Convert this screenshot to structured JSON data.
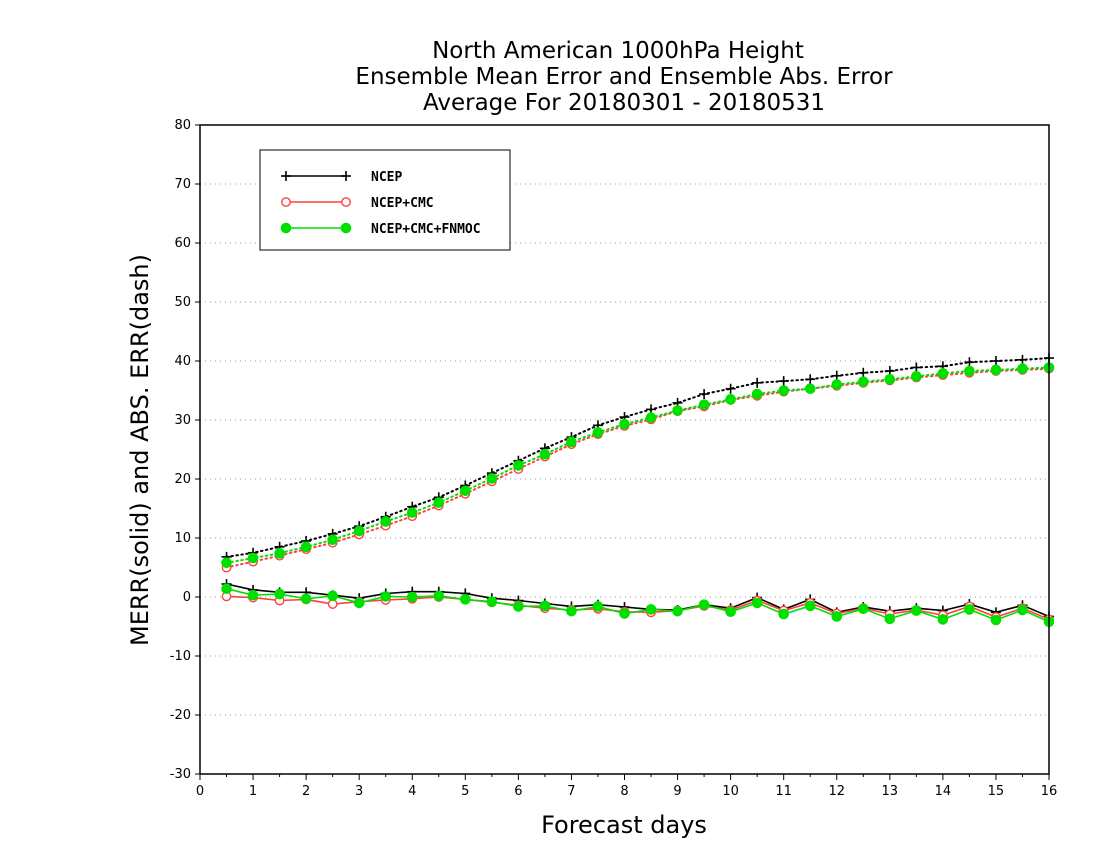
{
  "chart_data": {
    "type": "line",
    "title": [
      "North American 1000hPa Height",
      "Ensemble Mean Error and Ensemble Abs. Error",
      "Average For 20180301 - 20180531"
    ],
    "xlabel": "Forecast days",
    "ylabel": "MERR(solid) and ABS. ERR(dash)",
    "xlim": [
      0,
      16
    ],
    "ylim": [
      -30,
      80
    ],
    "xticks": [
      "0",
      "1",
      "2",
      "3",
      "4",
      "5",
      "6",
      "7",
      "8",
      "9",
      "10",
      "11",
      "12",
      "13",
      "14",
      "15",
      "16"
    ],
    "yticks": [
      "-30",
      "-20",
      "-10",
      "0",
      "10",
      "20",
      "30",
      "40",
      "50",
      "60",
      "70",
      "80"
    ],
    "grid": "horizontal dotted",
    "legend_position": "top-left",
    "x": [
      0.5,
      1,
      1.5,
      2,
      2.5,
      3,
      3.5,
      4,
      4.5,
      5,
      5.5,
      6,
      6.5,
      7,
      7.5,
      8,
      8.5,
      9,
      9.5,
      10,
      10.5,
      11,
      11.5,
      12,
      12.5,
      13,
      13.5,
      14,
      14.5,
      15,
      15.5,
      16
    ],
    "series": [
      {
        "name": "NCEP",
        "color": "#000000",
        "marker": "plus",
        "merr": [
          2.2,
          1.2,
          0.8,
          0.8,
          0.3,
          -0.2,
          0.6,
          0.9,
          0.9,
          0.6,
          -0.2,
          -0.6,
          -1.1,
          -1.6,
          -1.3,
          -1.7,
          -2.1,
          -2.2,
          -1.3,
          -1.9,
          -0.1,
          -2.1,
          -0.4,
          -2.6,
          -1.7,
          -2.4,
          -1.9,
          -2.3,
          -1.2,
          -2.6,
          -1.4,
          -3.3
        ],
        "abs_err": [
          6.8,
          7.5,
          8.5,
          9.5,
          10.7,
          12.0,
          13.6,
          15.3,
          16.9,
          18.9,
          21.0,
          23.1,
          25.2,
          27.1,
          29.1,
          30.5,
          31.8,
          32.9,
          34.4,
          35.3,
          36.3,
          36.6,
          36.9,
          37.5,
          38.0,
          38.3,
          38.9,
          39.1,
          39.8,
          40.0,
          40.2,
          40.5
        ]
      },
      {
        "name": "NCEP+CMC",
        "color": "#ff4040",
        "marker": "open-circle",
        "merr": [
          0.1,
          -0.1,
          -0.6,
          -0.4,
          -1.2,
          -0.8,
          -0.5,
          -0.3,
          0.0,
          -0.4,
          -0.9,
          -1.4,
          -1.9,
          -2.2,
          -2.0,
          -2.5,
          -2.6,
          -2.3,
          -1.5,
          -2.2,
          -0.6,
          -2.3,
          -1.0,
          -2.8,
          -1.9,
          -2.9,
          -2.2,
          -3.1,
          -1.6,
          -3.4,
          -1.9,
          -3.8
        ],
        "abs_err": [
          5.0,
          6.0,
          7.0,
          8.1,
          9.2,
          10.6,
          12.1,
          13.7,
          15.5,
          17.5,
          19.6,
          21.7,
          23.8,
          25.9,
          27.6,
          29.0,
          30.1,
          31.5,
          32.3,
          33.4,
          34.1,
          34.8,
          35.3,
          35.8,
          36.3,
          36.7,
          37.2,
          37.6,
          38.0,
          38.3,
          38.5,
          38.7
        ]
      },
      {
        "name": "NCEP+CMC+FNMOC",
        "color": "#00e000",
        "marker": "filled-circle",
        "merr": [
          1.4,
          0.3,
          0.5,
          -0.3,
          0.2,
          -1.0,
          0.1,
          0.0,
          0.2,
          -0.4,
          -0.8,
          -1.6,
          -1.5,
          -2.4,
          -1.6,
          -2.8,
          -2.1,
          -2.4,
          -1.3,
          -2.5,
          -1.0,
          -2.9,
          -1.5,
          -3.3,
          -2.0,
          -3.7,
          -2.3,
          -3.8,
          -2.1,
          -3.9,
          -2.2,
          -4.2
        ],
        "abs_err": [
          5.8,
          6.6,
          7.4,
          8.5,
          9.7,
          11.2,
          12.8,
          14.3,
          16.0,
          18.0,
          20.1,
          22.3,
          24.2,
          26.3,
          27.9,
          29.3,
          30.4,
          31.6,
          32.6,
          33.5,
          34.4,
          35.0,
          35.3,
          36.0,
          36.5,
          36.9,
          37.4,
          37.9,
          38.3,
          38.5,
          38.7,
          38.9
        ]
      }
    ]
  }
}
